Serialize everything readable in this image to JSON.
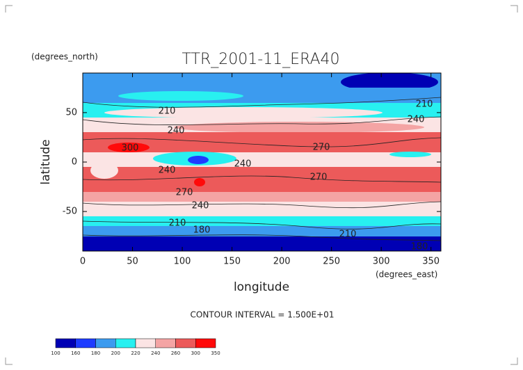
{
  "chart_data": {
    "type": "contour",
    "title": "TTR_2001-11_ERA40",
    "y_units": "(degrees_north)",
    "x_units": "(degrees_east)",
    "x_label": "longitude",
    "y_label": "latitude",
    "xlim": [
      0,
      360
    ],
    "xticks": [
      0,
      50,
      100,
      150,
      200,
      250,
      300,
      350
    ],
    "ylim": [
      -90,
      90
    ],
    "yticks": [
      -50,
      0,
      50
    ],
    "contour_labels": [
      210,
      240,
      210,
      240,
      270,
      300,
      240,
      240,
      270,
      270,
      240,
      210,
      180,
      210,
      180
    ],
    "contour_interval": "CONTOUR INTERVAL = 1.500E+01",
    "colorbar": {
      "levels": [
        100,
        160,
        180,
        200,
        220,
        240,
        260,
        300,
        350
      ],
      "colors": [
        "#0000b4",
        "#1e3cff",
        "#3c9bef",
        "#28f0f0",
        "#fbe4e4",
        "#f4a4a4",
        "#ec5a5a",
        "#ff0a0a"
      ]
    }
  }
}
